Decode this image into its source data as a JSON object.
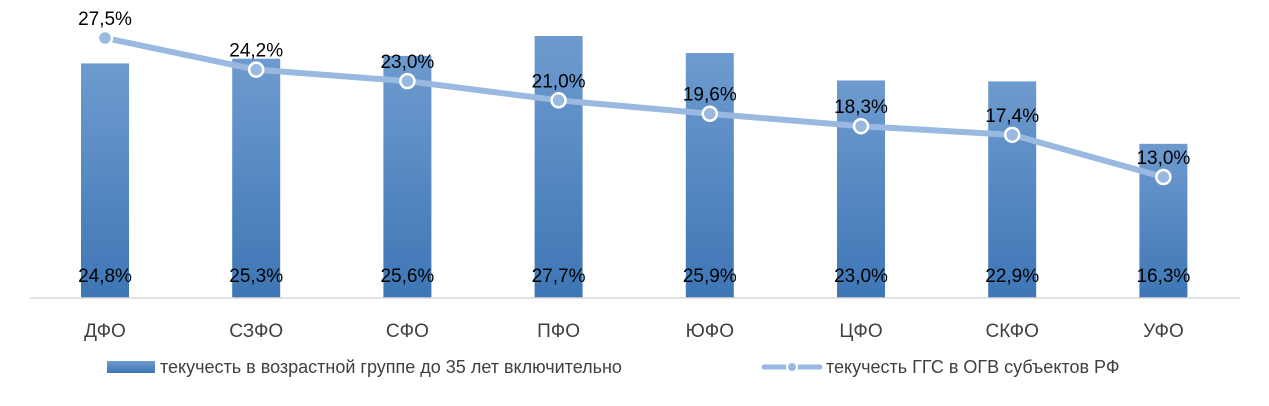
{
  "chart_data": {
    "type": "bar",
    "categories": [
      "ДФО",
      "СЗФО",
      "СФО",
      "ПФО",
      "ЮФО",
      "ЦФО",
      "СКФО",
      "УФО"
    ],
    "series": [
      {
        "name": "текучесть в возрастной группе до 35 лет включительно",
        "type": "bar",
        "values": [
          24.8,
          25.3,
          25.6,
          27.7,
          25.9,
          23.0,
          22.9,
          16.3
        ],
        "labels": [
          "24,8%",
          "25,3%",
          "25,6%",
          "27,7%",
          "25,9%",
          "23,0%",
          "22,9%",
          "16,3%"
        ],
        "color": "#4a82bd"
      },
      {
        "name": "текучесть ГГС в ОГВ субъектов РФ",
        "type": "line",
        "values": [
          27.5,
          24.2,
          23.0,
          21.0,
          19.6,
          18.3,
          17.4,
          13.0
        ],
        "labels": [
          "27,5%",
          "24,2%",
          "23,0%",
          "21,0%",
          "19,6%",
          "18,3%",
          "17,4%",
          "13,0%"
        ],
        "color": "#9ab9e0"
      }
    ],
    "legend_position": "bottom",
    "grid": false
  }
}
